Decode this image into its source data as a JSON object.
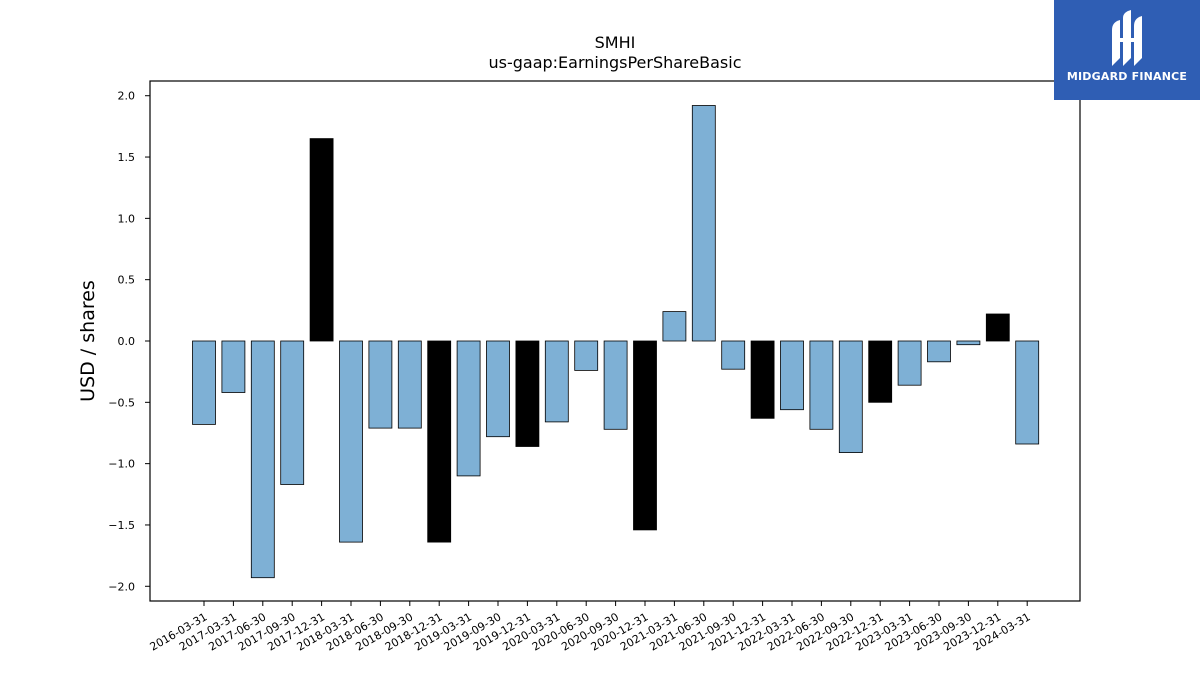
{
  "chart_data": {
    "type": "bar",
    "title": "SMHI",
    "subtitle": "us-gaap:EarningsPerShareBasic",
    "xlabel": "",
    "ylabel": "USD / shares",
    "ylim": [
      -2.12,
      2.12
    ],
    "yticks": [
      2.0,
      1.5,
      1.0,
      0.5,
      0.0,
      -0.5,
      -1.0,
      -1.5,
      -2.0
    ],
    "ytick_labels": [
      "2.0",
      "1.5",
      "1.0",
      "0.5",
      "0.0",
      "−0.5",
      "−1.0",
      "−1.5",
      "−2.0"
    ],
    "categories": [
      "2016-03-31",
      "2017-03-31",
      "2017-06-30",
      "2017-09-30",
      "2017-12-31",
      "2018-03-31",
      "2018-06-30",
      "2018-09-30",
      "2018-12-31",
      "2019-03-31",
      "2019-09-30",
      "2019-12-31",
      "2020-03-31",
      "2020-06-30",
      "2020-09-30",
      "2020-12-31",
      "2021-03-31",
      "2021-06-30",
      "2021-09-30",
      "2021-12-31",
      "2022-03-31",
      "2022-06-30",
      "2022-09-30",
      "2022-12-31",
      "2023-03-31",
      "2023-06-30",
      "2023-09-30",
      "2023-12-31",
      "2024-03-31"
    ],
    "values": [
      -0.68,
      -0.42,
      -1.93,
      -1.17,
      1.65,
      -1.64,
      -0.71,
      -0.71,
      -1.64,
      -1.1,
      -0.78,
      -0.86,
      -0.66,
      -0.24,
      -0.72,
      -1.54,
      0.24,
      1.92,
      -0.23,
      -0.63,
      -0.56,
      -0.72,
      -0.91,
      -0.5,
      -0.36,
      -0.17,
      -0.03,
      0.22,
      -0.84
    ],
    "bar_colors": [
      "#7eb0d5",
      "#7eb0d5",
      "#7eb0d5",
      "#7eb0d5",
      "#000000",
      "#7eb0d5",
      "#7eb0d5",
      "#7eb0d5",
      "#000000",
      "#7eb0d5",
      "#7eb0d5",
      "#000000",
      "#7eb0d5",
      "#7eb0d5",
      "#7eb0d5",
      "#000000",
      "#7eb0d5",
      "#7eb0d5",
      "#7eb0d5",
      "#000000",
      "#7eb0d5",
      "#7eb0d5",
      "#7eb0d5",
      "#000000",
      "#7eb0d5",
      "#7eb0d5",
      "#7eb0d5",
      "#000000",
      "#7eb0d5"
    ],
    "grid": false,
    "legend": "none"
  },
  "logo": {
    "text": "MIDGARD FINANCE",
    "background": "#2f5eb4",
    "icon": "midgard-logo-icon"
  }
}
